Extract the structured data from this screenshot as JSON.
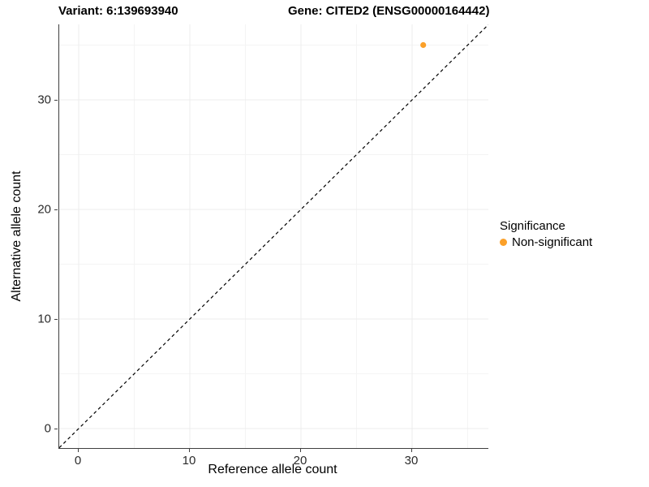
{
  "titles": {
    "variant": "Variant: 6:139693940",
    "gene": "Gene: CITED2 (ENSG00000164442)"
  },
  "axes": {
    "x_label": "Reference allele count",
    "y_label": "Alternative allele count"
  },
  "legend": {
    "title": "Significance",
    "items": [
      {
        "label": "Non-significant",
        "color": "#FBA029"
      }
    ]
  },
  "colors": {
    "axis_line": "#3f3f3f",
    "major_grid": "#ececec",
    "minor_grid": "#f4f4f4",
    "identity_line": "#000000",
    "background": "#ffffff"
  },
  "chart_data": {
    "type": "scatter",
    "title": "Variant: 6:139693940 — Gene: CITED2 (ENSG00000164442)",
    "xlabel": "Reference allele count",
    "ylabel": "Alternative allele count",
    "xlim": [
      0,
      35
    ],
    "ylim": [
      0,
      35
    ],
    "x_ticks": [
      0,
      10,
      20,
      30
    ],
    "y_ticks": [
      0,
      10,
      20,
      30
    ],
    "x_minor_gridlines": [
      5,
      15,
      25,
      35
    ],
    "y_minor_gridlines": [
      5,
      15,
      25,
      35
    ],
    "grid": "major+minor on white background",
    "series": [
      {
        "name": "Non-significant",
        "color": "#FBA029",
        "points": [
          {
            "x": 31,
            "y": 35
          }
        ]
      }
    ],
    "identity_line": {
      "slope": 1,
      "intercept": 0,
      "style": "dashed",
      "color": "#000000"
    },
    "legend_position": "right"
  }
}
